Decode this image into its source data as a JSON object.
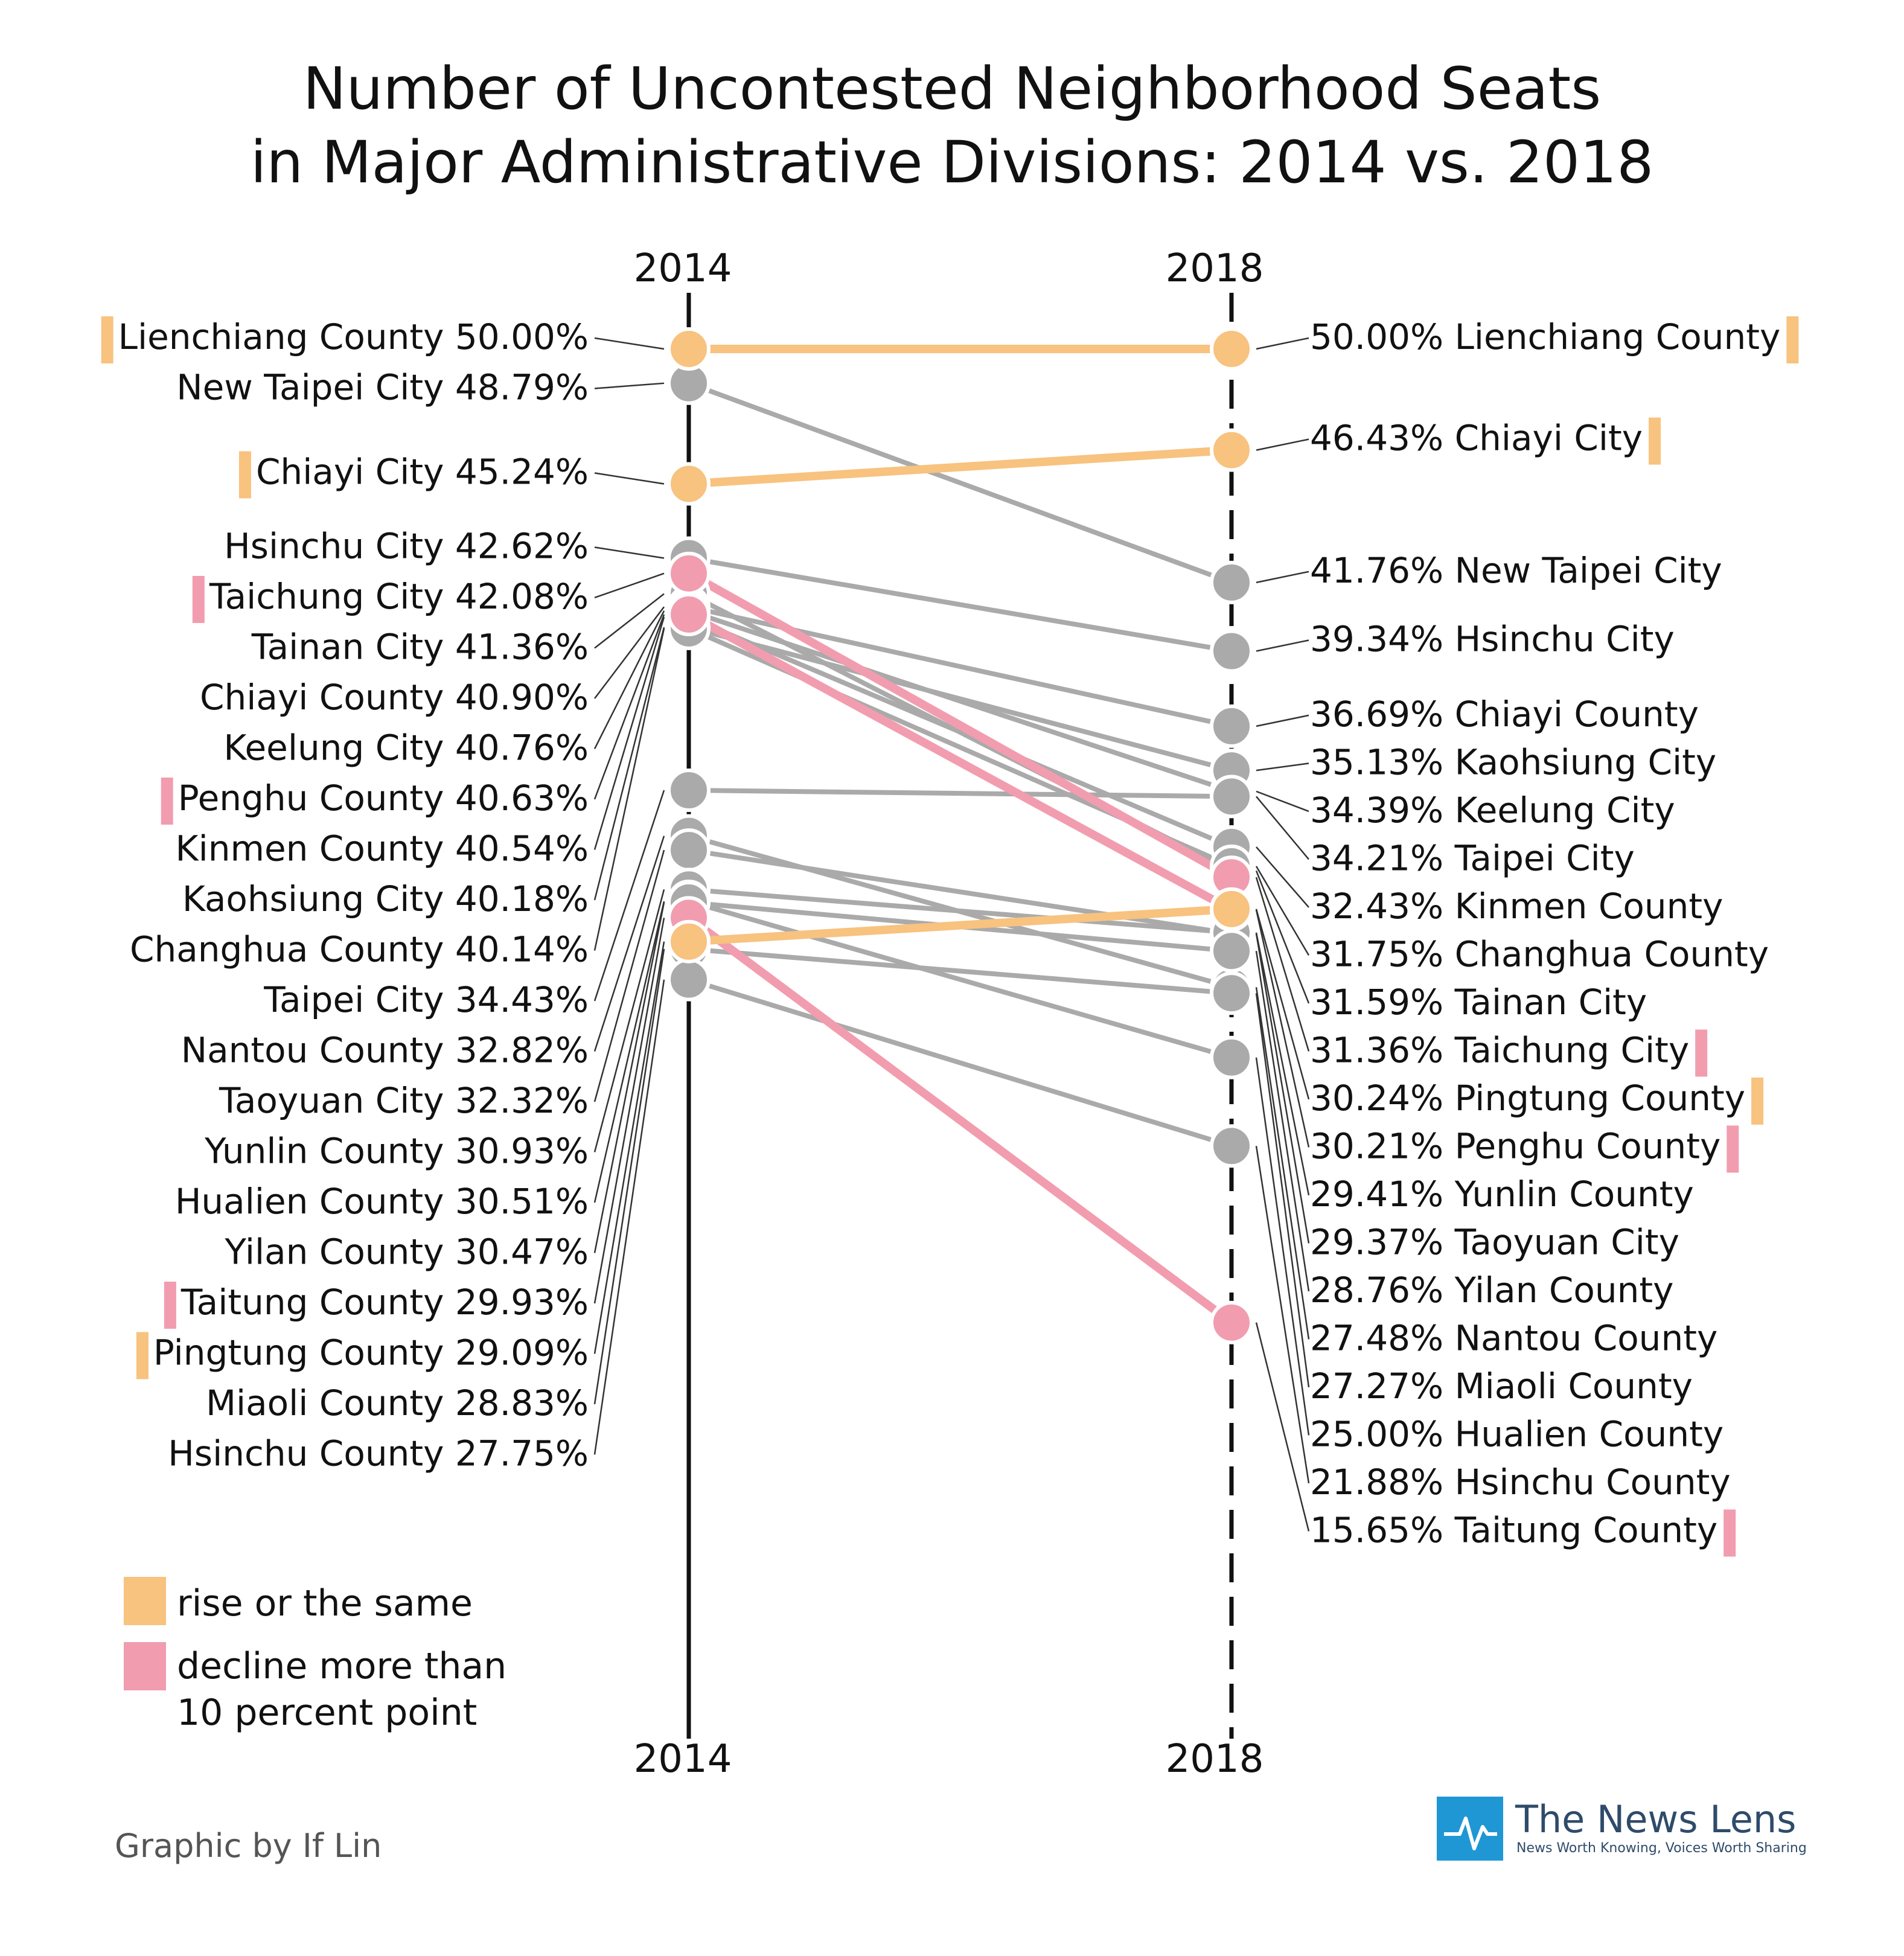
{
  "colors": {
    "rise": "#f8c27f",
    "decline": "#f19daf",
    "neutral": "#aaaaaa",
    "axis": "#111111",
    "brand_blue": "#1f97d4"
  },
  "footer": {
    "credit": "Graphic by If Lin",
    "brand_name": "The News Lens",
    "brand_tagline": "News Worth Knowing, Voices Worth Sharing",
    "brand_icon": "news-lens-logo-icon"
  },
  "chart_data": {
    "type": "slope",
    "title": [
      "Number of Uncontested Neighborhood Seats",
      "in Major Administrative Divisions: 2014 vs. 2018"
    ],
    "x": [
      "2014",
      "2018"
    ],
    "unit": "%",
    "legend": [
      {
        "key": "rise",
        "label": [
          "rise or the same"
        ]
      },
      {
        "key": "decline",
        "label": [
          "decline more than",
          "10 percent point"
        ]
      }
    ],
    "series": [
      {
        "name": "Lienchiang County",
        "values": [
          50.0,
          50.0
        ],
        "label_2014": "50.00%",
        "label_2018": "50.00%",
        "category": "rise"
      },
      {
        "name": "New Taipei City",
        "values": [
          48.79,
          41.76
        ],
        "label_2014": "48.79%",
        "label_2018": "41.76%",
        "category": "neutral"
      },
      {
        "name": "Chiayi City",
        "values": [
          45.24,
          46.43
        ],
        "label_2014": "45.24%",
        "label_2018": "46.43%",
        "category": "rise"
      },
      {
        "name": "Hsinchu City",
        "values": [
          42.62,
          39.34
        ],
        "label_2014": "42.62%",
        "label_2018": "39.34%",
        "category": "neutral"
      },
      {
        "name": "Taichung City",
        "values": [
          42.08,
          31.36
        ],
        "label_2014": "42.08%",
        "label_2018": "31.36%",
        "category": "decline"
      },
      {
        "name": "Tainan City",
        "values": [
          41.36,
          31.59
        ],
        "label_2014": "41.36%",
        "label_2018": "31.59%",
        "category": "neutral"
      },
      {
        "name": "Chiayi County",
        "values": [
          40.9,
          36.69
        ],
        "label_2014": "40.90%",
        "label_2018": "36.69%",
        "category": "neutral"
      },
      {
        "name": "Keelung City",
        "values": [
          40.76,
          34.39
        ],
        "label_2014": "40.76%",
        "label_2018": "34.39%",
        "category": "neutral"
      },
      {
        "name": "Penghu County",
        "values": [
          40.63,
          30.21
        ],
        "label_2014": "40.63%",
        "label_2018": "30.21%",
        "category": "decline"
      },
      {
        "name": "Kinmen County",
        "values": [
          40.54,
          32.43
        ],
        "label_2014": "40.54%",
        "label_2018": "32.43%",
        "category": "neutral"
      },
      {
        "name": "Kaohsiung City",
        "values": [
          40.18,
          35.13
        ],
        "label_2014": "40.18%",
        "label_2018": "35.13%",
        "category": "neutral"
      },
      {
        "name": "Changhua County",
        "values": [
          40.14,
          31.75
        ],
        "label_2014": "40.14%",
        "label_2018": "31.75%",
        "category": "neutral"
      },
      {
        "name": "Taipei City",
        "values": [
          34.43,
          34.21
        ],
        "label_2014": "34.43%",
        "label_2018": "34.21%",
        "category": "neutral"
      },
      {
        "name": "Nantou County",
        "values": [
          32.82,
          27.48
        ],
        "label_2014": "32.82%",
        "label_2018": "27.48%",
        "category": "neutral"
      },
      {
        "name": "Taoyuan City",
        "values": [
          32.32,
          29.37
        ],
        "label_2014": "32.32%",
        "label_2018": "29.37%",
        "category": "neutral"
      },
      {
        "name": "Yunlin County",
        "values": [
          30.93,
          29.41
        ],
        "label_2014": "30.93%",
        "label_2018": "29.41%",
        "category": "neutral"
      },
      {
        "name": "Hualien County",
        "values": [
          30.51,
          25.0
        ],
        "label_2014": "30.51%",
        "label_2018": "25.00%",
        "category": "neutral"
      },
      {
        "name": "Yilan County",
        "values": [
          30.47,
          28.76
        ],
        "label_2014": "30.47%",
        "label_2018": "28.76%",
        "category": "neutral"
      },
      {
        "name": "Taitung County",
        "values": [
          29.93,
          15.65
        ],
        "label_2014": "29.93%",
        "label_2018": "15.65%",
        "category": "decline"
      },
      {
        "name": "Pingtung County",
        "values": [
          29.09,
          30.24
        ],
        "label_2014": "29.09%",
        "label_2018": "30.24%",
        "category": "rise"
      },
      {
        "name": "Miaoli County",
        "values": [
          28.83,
          27.27
        ],
        "label_2014": "28.83%",
        "label_2018": "27.27%",
        "category": "neutral"
      },
      {
        "name": "Hsinchu County",
        "values": [
          27.75,
          21.88
        ],
        "label_2014": "27.75%",
        "label_2018": "21.88%",
        "category": "neutral"
      }
    ]
  }
}
